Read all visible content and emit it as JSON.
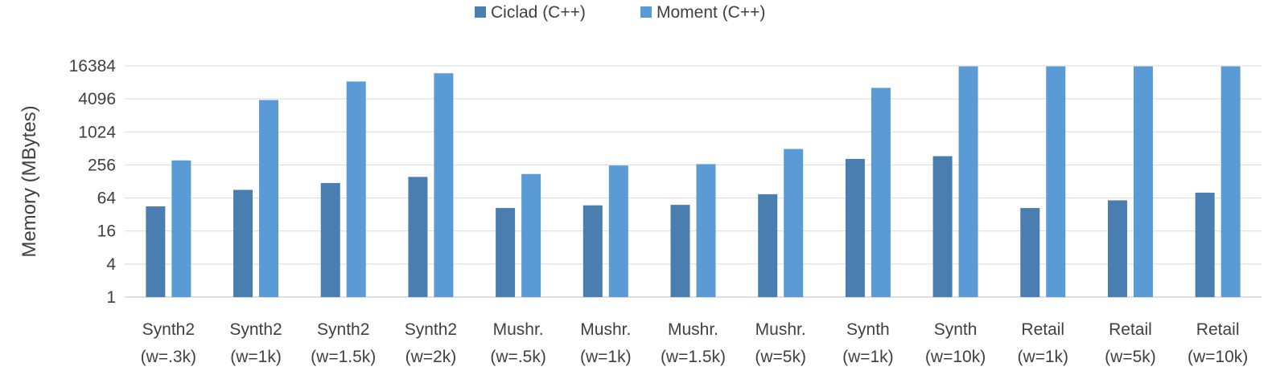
{
  "chart_data": {
    "type": "bar",
    "title": "",
    "xlabel": "",
    "ylabel": "Memory (MBytes)",
    "yscale": "log2",
    "yticks": [
      1,
      4,
      16,
      64,
      256,
      1024,
      4096,
      16384
    ],
    "ylim": [
      1,
      16384
    ],
    "legend_position": "top",
    "grid": true,
    "categories": [
      [
        "Synth2",
        "(w=.3k)"
      ],
      [
        "Synth2",
        "(w=1k)"
      ],
      [
        "Synth2",
        "(w=1.5k)"
      ],
      [
        "Synth2",
        "(w=2k)"
      ],
      [
        "Mushr.",
        "(w=.5k)"
      ],
      [
        "Mushr.",
        "(w=1k)"
      ],
      [
        "Mushr.",
        "(w=1.5k)"
      ],
      [
        "Mushr.",
        "(w=5k)"
      ],
      [
        "Synth",
        "(w=1k)"
      ],
      [
        "Synth",
        "(w=10k)"
      ],
      [
        "Retail",
        "(w=1k)"
      ],
      [
        "Retail",
        "(w=5k)"
      ],
      [
        "Retail",
        "(w=10k)"
      ]
    ],
    "series": [
      {
        "name": "Ciclad (C++)",
        "color": "#4a7eb0",
        "values": [
          45,
          90,
          120,
          155,
          42,
          47,
          48,
          75,
          330,
          370,
          42,
          58,
          80
        ]
      },
      {
        "name": "Moment (C++)",
        "color": "#5b9bd5",
        "values": [
          310,
          3900,
          8500,
          12000,
          175,
          250,
          265,
          500,
          6500,
          16000,
          16000,
          16000,
          16000
        ]
      }
    ]
  }
}
